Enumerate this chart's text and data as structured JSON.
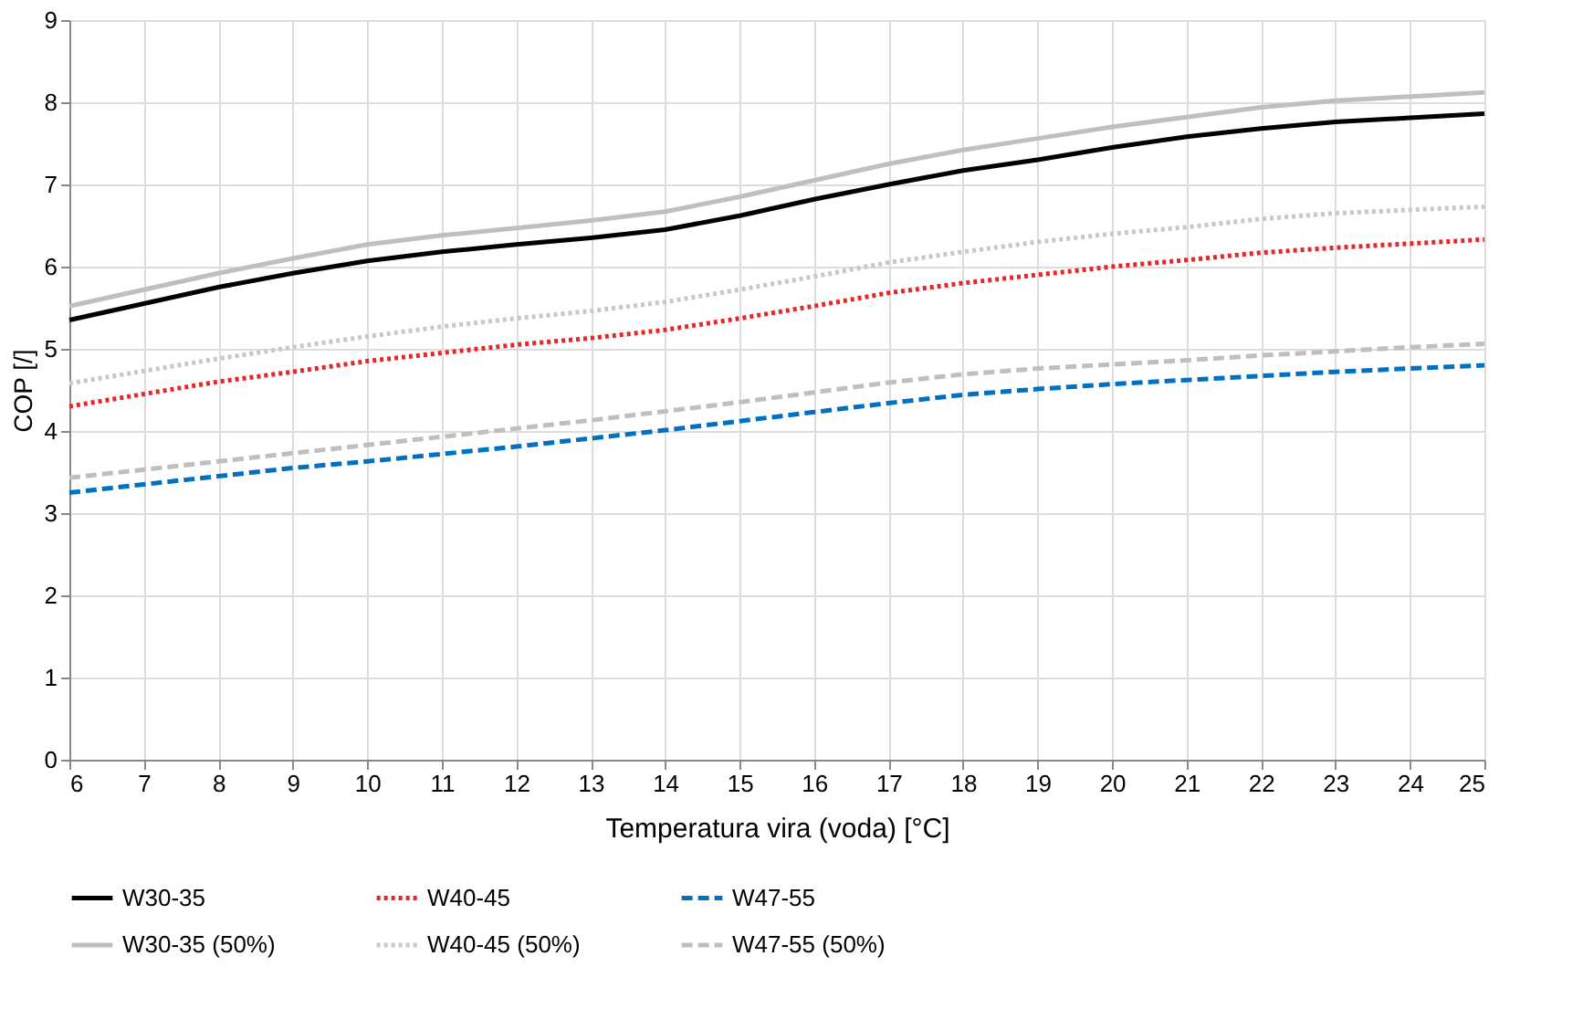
{
  "chart_data": {
    "type": "line",
    "xlabel": "Temperatura vira (voda) [°C]",
    "ylabel": "COP [/]",
    "x": [
      6,
      7,
      8,
      9,
      10,
      11,
      12,
      13,
      14,
      15,
      16,
      17,
      18,
      19,
      20,
      21,
      22,
      23,
      24,
      25
    ],
    "xlim": [
      6,
      25
    ],
    "xticks": [
      6,
      7,
      8,
      9,
      10,
      11,
      12,
      13,
      14,
      15,
      16,
      17,
      18,
      19,
      20,
      21,
      22,
      23,
      24,
      25
    ],
    "ylim": [
      0,
      9
    ],
    "yticks": [
      0,
      1,
      2,
      3,
      4,
      5,
      6,
      7,
      8,
      9
    ],
    "grid": true,
    "legend": "bottom",
    "marker": "none",
    "series": [
      {
        "name": "W30-35",
        "color": "#000000",
        "line_style": "solid",
        "values": [
          5.35,
          5.55,
          5.75,
          5.92,
          6.07,
          6.18,
          6.27,
          6.35,
          6.45,
          6.62,
          6.82,
          7.0,
          7.17,
          7.3,
          7.45,
          7.58,
          7.68,
          7.76,
          7.81,
          7.86
        ]
      },
      {
        "name": "W40-45",
        "color": "#e8262a",
        "line_style": "dotted",
        "values": [
          4.3,
          4.45,
          4.6,
          4.72,
          4.85,
          4.95,
          5.05,
          5.13,
          5.23,
          5.37,
          5.52,
          5.68,
          5.8,
          5.9,
          6.0,
          6.08,
          6.17,
          6.23,
          6.28,
          6.33
        ]
      },
      {
        "name": "W47-55",
        "color": "#0070c0",
        "line_style": "dashed",
        "values": [
          3.25,
          3.35,
          3.45,
          3.55,
          3.63,
          3.72,
          3.81,
          3.91,
          4.01,
          4.12,
          4.23,
          4.34,
          4.44,
          4.51,
          4.57,
          4.62,
          4.67,
          4.72,
          4.76,
          4.8
        ]
      },
      {
        "name": "W30-35 (50%)",
        "color": "#bfbfbf",
        "line_style": "solid",
        "values": [
          5.52,
          5.72,
          5.92,
          6.1,
          6.27,
          6.38,
          6.47,
          6.56,
          6.67,
          6.85,
          7.05,
          7.25,
          7.42,
          7.56,
          7.7,
          7.82,
          7.94,
          8.02,
          8.07,
          8.12
        ]
      },
      {
        "name": "W40-45 (50%)",
        "color": "#c8c8c8",
        "line_style": "dotted",
        "values": [
          4.58,
          4.73,
          4.88,
          5.02,
          5.15,
          5.27,
          5.37,
          5.46,
          5.57,
          5.72,
          5.88,
          6.05,
          6.18,
          6.3,
          6.4,
          6.48,
          6.58,
          6.65,
          6.69,
          6.73
        ]
      },
      {
        "name": "W47-55 (50%)",
        "color": "#bfbfbf",
        "line_style": "dashed",
        "values": [
          3.43,
          3.53,
          3.63,
          3.73,
          3.83,
          3.93,
          4.03,
          4.13,
          4.24,
          4.35,
          4.47,
          4.59,
          4.69,
          4.76,
          4.81,
          4.86,
          4.92,
          4.97,
          5.02,
          5.06
        ]
      }
    ]
  }
}
